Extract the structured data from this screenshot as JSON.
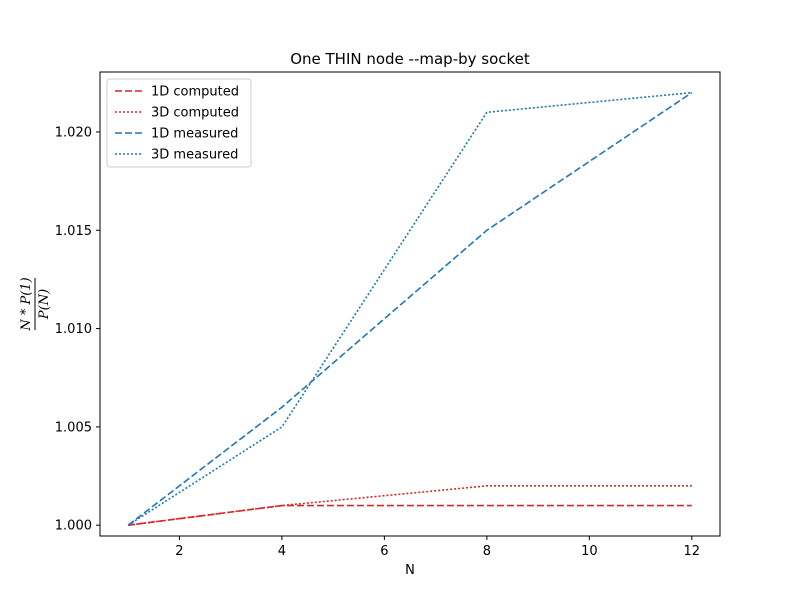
{
  "chart_data": {
    "type": "line",
    "title": "One THIN node --map-by socket",
    "xlabel": "N",
    "ylabel": "N * P(1) / P(N)",
    "xlim": [
      0.45,
      12.55
    ],
    "ylim": [
      0.99945,
      1.02305
    ],
    "xticks": [
      2,
      4,
      6,
      8,
      10,
      12
    ],
    "yticks": [
      1.0,
      1.005,
      1.01,
      1.015,
      1.02
    ],
    "ytick_labels": [
      "1.000",
      "1.005",
      "1.010",
      "1.015",
      "1.020"
    ],
    "legend_position": "upper-left",
    "grid": false,
    "series": [
      {
        "name": "1D computed",
        "color": "#d62728",
        "dash": "dashed",
        "x": [
          1,
          4,
          8,
          12
        ],
        "y": [
          1.0,
          1.001,
          1.001,
          1.001
        ]
      },
      {
        "name": "3D computed",
        "color": "#d62728",
        "dash": "dotted",
        "x": [
          1,
          4,
          8,
          12
        ],
        "y": [
          1.0,
          1.001,
          1.002,
          1.002
        ]
      },
      {
        "name": "1D measured",
        "color": "#1f77b4",
        "dash": "dashed",
        "x": [
          1,
          4,
          8,
          12
        ],
        "y": [
          1.0,
          1.006,
          1.015,
          1.022
        ]
      },
      {
        "name": "3D measured",
        "color": "#1f77b4",
        "dash": "dotted",
        "x": [
          1,
          4,
          8,
          12
        ],
        "y": [
          1.0,
          1.005,
          1.021,
          1.022
        ]
      }
    ]
  }
}
